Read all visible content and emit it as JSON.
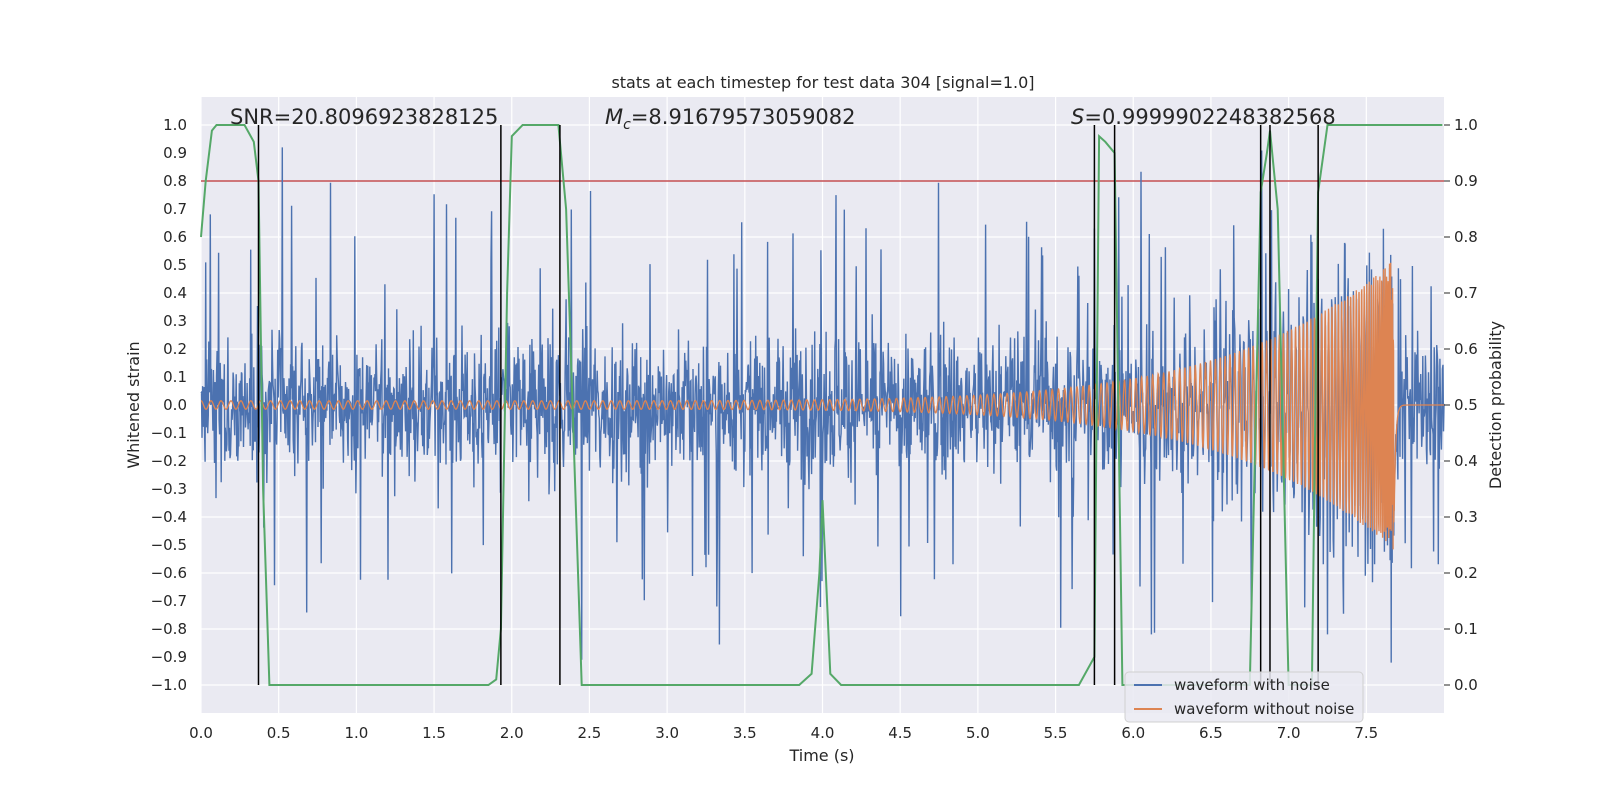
{
  "chart_data": {
    "type": "line",
    "title": "stats at each timestep for test data 304 [signal=1.0]",
    "xlabel": "Time (s)",
    "ylabel": "Whitened strain",
    "y2label": "Detection probability",
    "xlim": [
      0.0,
      8.0
    ],
    "ylim": [
      -1.1,
      1.1
    ],
    "y2lim": [
      -0.05,
      1.05
    ],
    "xticks": [
      0.0,
      0.5,
      1.0,
      1.5,
      2.0,
      2.5,
      3.0,
      3.5,
      4.0,
      4.5,
      5.0,
      5.5,
      6.0,
      6.5,
      7.0,
      7.5
    ],
    "xtick_labels": [
      "0.0",
      "0.5",
      "1.0",
      "1.5",
      "2.0",
      "2.5",
      "3.0",
      "3.5",
      "4.0",
      "4.5",
      "5.0",
      "5.5",
      "6.0",
      "6.5",
      "7.0",
      "7.5"
    ],
    "yticks": [
      1.0,
      0.9,
      0.8,
      0.7,
      0.6,
      0.5,
      0.4,
      0.3,
      0.2,
      0.1,
      0.0,
      -0.1,
      -0.2,
      -0.3,
      -0.4,
      -0.5,
      -0.6,
      -0.7,
      -0.8,
      -0.9,
      -1.0
    ],
    "ytick_labels": [
      "1.0",
      "0.9",
      "0.8",
      "0.7",
      "0.6",
      "0.5",
      "0.4",
      "0.3",
      "0.2",
      "0.1",
      "0.0",
      "−0.1",
      "−0.2",
      "−0.3",
      "−0.4",
      "−0.5",
      "−0.6",
      "−0.7",
      "−0.8",
      "−0.9",
      "−1.0"
    ],
    "y2ticks": [
      1.0,
      0.9,
      0.8,
      0.7,
      0.6,
      0.5,
      0.4,
      0.3,
      0.2,
      0.1,
      0.0
    ],
    "y2tick_labels": [
      "1.0",
      "0.9",
      "0.8",
      "0.7",
      "0.6",
      "0.5",
      "0.4",
      "0.3",
      "0.2",
      "0.1",
      "0.0"
    ],
    "threshold": 0.9,
    "annotations": {
      "snr_label": "SNR=20.8096923828125",
      "mc_symbol": "M",
      "mc_sub": "c",
      "mc_value": "=8.91679573059082",
      "s_symbol": "S",
      "s_value": "=0.9999902248382568"
    },
    "trigger_times": [
      0.37,
      1.93,
      2.31,
      5.75,
      5.88,
      6.82,
      6.88,
      7.19
    ],
    "series": [
      {
        "name": "waveform with noise",
        "color": "#4c72b0",
        "envelope": "noise band roughly ±0.45 with spikes up to about ±0.9 across 0–8 s"
      },
      {
        "name": "waveform without noise",
        "color": "#dd8452",
        "envelope": "chirp: amplitude about 0.015 at 0 s rising to about 0.52 peak at 7.68 s, then ringdown to 0",
        "merger_time": 7.68
      },
      {
        "name": "detection probability",
        "color": "#55a868",
        "axis": "right",
        "x": [
          0.0,
          0.03,
          0.07,
          0.1,
          0.28,
          0.34,
          0.37,
          0.4,
          0.44,
          1.85,
          1.9,
          1.93,
          1.97,
          2.0,
          2.07,
          2.3,
          2.35,
          2.45,
          3.85,
          3.93,
          3.98,
          4.0,
          4.05,
          4.12,
          5.65,
          5.75,
          5.78,
          5.82,
          5.88,
          5.93,
          6.75,
          6.82,
          6.86,
          6.88,
          6.93,
          7.0,
          7.15,
          7.19,
          7.25,
          7.99
        ],
        "y": [
          0.8,
          0.9,
          0.99,
          1.0,
          1.0,
          0.97,
          0.9,
          0.35,
          0.0,
          0.0,
          0.01,
          0.1,
          0.7,
          0.98,
          1.0,
          1.0,
          0.85,
          0.0,
          0.0,
          0.02,
          0.2,
          0.33,
          0.02,
          0.0,
          0.0,
          0.05,
          0.98,
          0.97,
          0.95,
          0.0,
          0.0,
          0.88,
          0.95,
          0.99,
          0.85,
          0.0,
          0.0,
          0.88,
          1.0,
          1.0
        ]
      }
    ],
    "legend": {
      "placement": "lower-right",
      "entries": [
        {
          "label": "waveform with noise",
          "color": "#4c72b0"
        },
        {
          "label": "waveform without noise",
          "color": "#dd8452"
        }
      ]
    },
    "colors": {
      "background": "#eaeaf2",
      "grid": "#ffffff",
      "threshold": "#c44e52",
      "trigger": "#000000"
    }
  }
}
